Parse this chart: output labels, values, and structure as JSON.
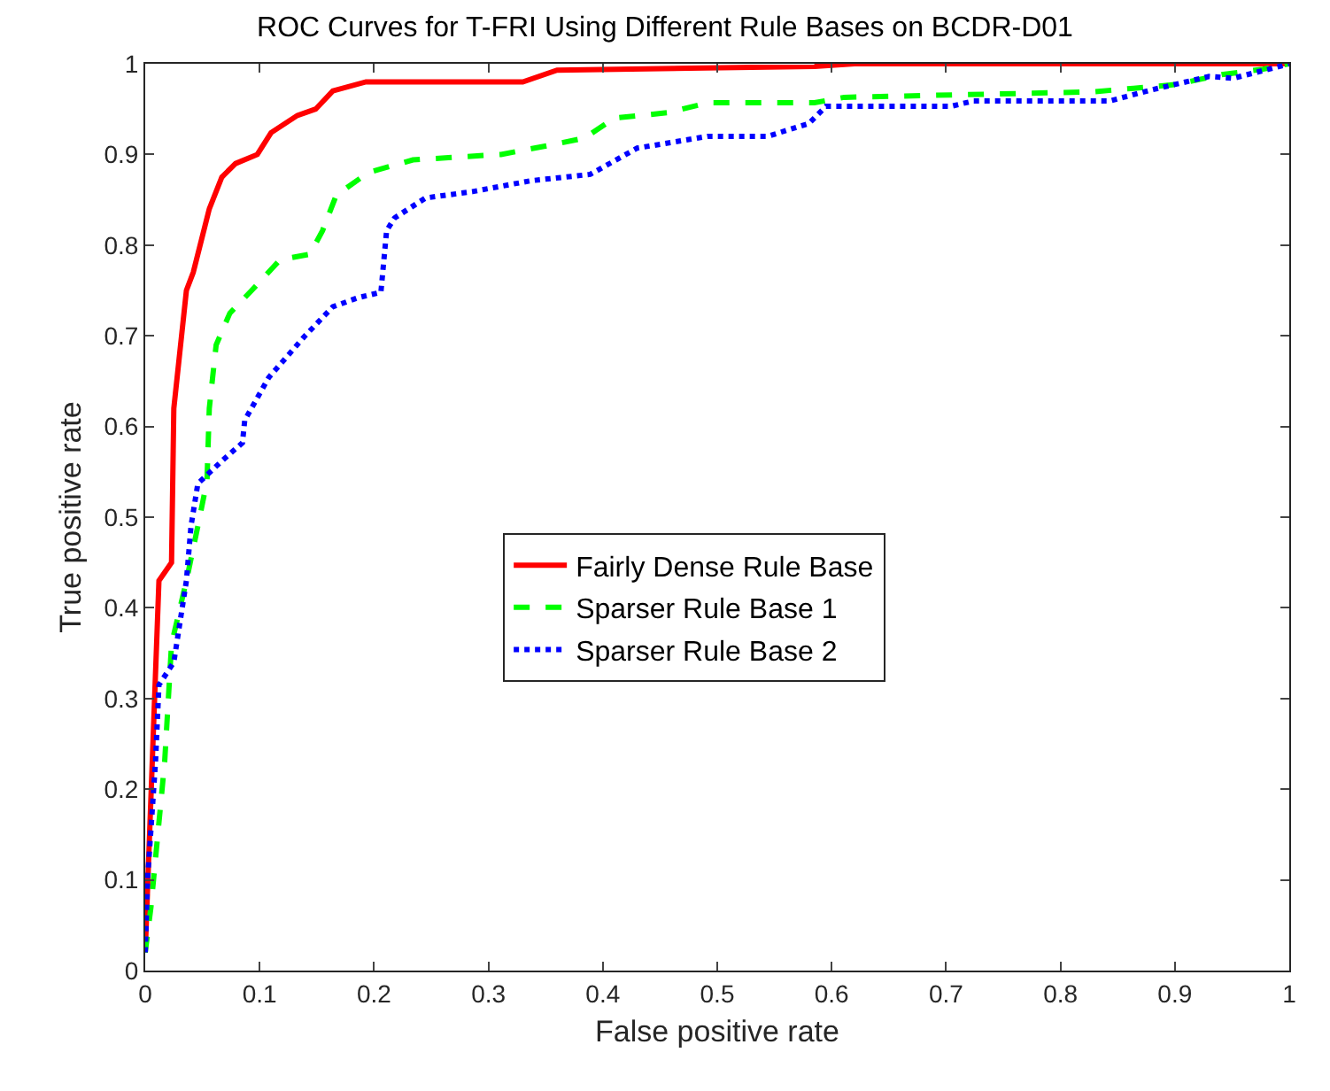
{
  "chart_data": {
    "type": "line",
    "title": "ROC Curves for T-FRI Using Different Rule Bases on BCDR-D01",
    "xlabel": "False positive rate",
    "ylabel": "True positive rate",
    "xlim": [
      0,
      1
    ],
    "ylim": [
      0,
      1
    ],
    "xticks": [
      0,
      0.1,
      0.2,
      0.3,
      0.4,
      0.5,
      0.6,
      0.7,
      0.8,
      0.9,
      1
    ],
    "yticks": [
      0,
      0.1,
      0.2,
      0.3,
      0.4,
      0.5,
      0.6,
      0.7,
      0.8,
      0.9,
      1
    ],
    "grid": false,
    "legend": "center",
    "marker": "none",
    "series": [
      {
        "name": "Fairly Dense Rule Base",
        "color": "#ff0000",
        "line_style": "solid",
        "x": [
          0,
          0.012,
          0.023,
          0.025,
          0.036,
          0.042,
          0.056,
          0.067,
          0.079,
          0.098,
          0.11,
          0.133,
          0.149,
          0.164,
          0.193,
          0.33,
          0.36,
          0.585,
          0.62,
          1
        ],
        "values": [
          0.02,
          0.43,
          0.45,
          0.62,
          0.75,
          0.77,
          0.84,
          0.875,
          0.89,
          0.9,
          0.924,
          0.943,
          0.95,
          0.97,
          0.98,
          0.98,
          0.993,
          0.997,
          1,
          1
        ]
      },
      {
        "name": "Sparser Rule Base 1",
        "color": "#00ff00",
        "line_style": "dashed",
        "x": [
          0,
          0.005,
          0.017,
          0.023,
          0.036,
          0.046,
          0.054,
          0.056,
          0.062,
          0.074,
          0.093,
          0.118,
          0.144,
          0.155,
          0.167,
          0.195,
          0.234,
          0.311,
          0.353,
          0.384,
          0.41,
          0.456,
          0.492,
          0.585,
          0.611,
          0.828,
          0.864,
          0.9,
          0.941,
          0.977,
          1
        ],
        "values": [
          0.02,
          0.07,
          0.23,
          0.36,
          0.43,
          0.49,
          0.54,
          0.62,
          0.69,
          0.725,
          0.75,
          0.784,
          0.79,
          0.816,
          0.855,
          0.88,
          0.894,
          0.9,
          0.91,
          0.918,
          0.94,
          0.946,
          0.957,
          0.957,
          0.963,
          0.969,
          0.973,
          0.977,
          0.988,
          0.994,
          1
        ]
      },
      {
        "name": "Sparser Rule Base 2",
        "color": "#0000ff",
        "line_style": "dotted",
        "x": [
          0,
          0.002,
          0.009,
          0.012,
          0.025,
          0.036,
          0.04,
          0.046,
          0.067,
          0.085,
          0.087,
          0.108,
          0.139,
          0.164,
          0.186,
          0.206,
          0.211,
          0.218,
          0.245,
          0.286,
          0.337,
          0.389,
          0.43,
          0.492,
          0.544,
          0.58,
          0.595,
          0.704,
          0.724,
          0.843,
          0.879,
          0.93,
          0.951,
          0.988,
          1
        ],
        "values": [
          0.02,
          0.1,
          0.23,
          0.315,
          0.34,
          0.43,
          0.49,
          0.537,
          0.562,
          0.582,
          0.607,
          0.654,
          0.699,
          0.732,
          0.742,
          0.748,
          0.816,
          0.83,
          0.852,
          0.859,
          0.871,
          0.878,
          0.907,
          0.92,
          0.92,
          0.934,
          0.953,
          0.953,
          0.959,
          0.959,
          0.971,
          0.986,
          0.984,
          0.996,
          1
        ]
      }
    ]
  }
}
